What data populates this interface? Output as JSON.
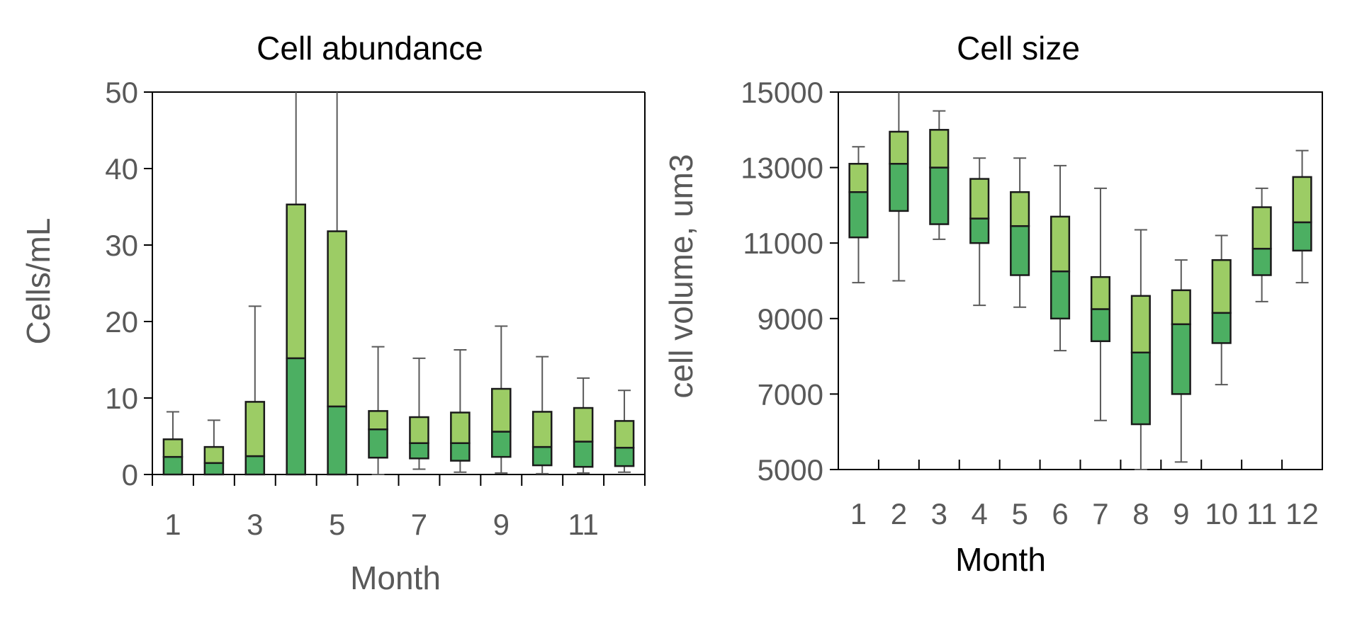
{
  "colors": {
    "upper_box": "#9ccc65",
    "lower_box": "#4caf62",
    "box_stroke": "#1a1a1a",
    "whisker": "#595959",
    "axis": "#000000",
    "tick_text": "#595959"
  },
  "chart_data": [
    {
      "type": "box",
      "title": "Cell abundance",
      "xlabel": "Month",
      "ylabel": "Cells/mL",
      "ylim": [
        0,
        50
      ],
      "y_ticks": [
        "0",
        "10",
        "20",
        "30",
        "40",
        "50"
      ],
      "x_tick_labels": [
        "1",
        "3",
        "5",
        "7",
        "9",
        "11"
      ],
      "categories": [
        1,
        2,
        3,
        4,
        5,
        6,
        7,
        8,
        9,
        10,
        11,
        12
      ],
      "grid": false,
      "boxes": [
        {
          "month": 1,
          "min": 0,
          "q1": 0,
          "median": 2.3,
          "q3": 4.6,
          "max": 8.2
        },
        {
          "month": 2,
          "min": 0,
          "q1": 0,
          "median": 1.5,
          "q3": 3.6,
          "max": 7.1
        },
        {
          "month": 3,
          "min": 0,
          "q1": 0,
          "median": 2.4,
          "q3": 9.5,
          "max": 22
        },
        {
          "month": 4,
          "min": 0,
          "q1": 0,
          "median": 15.2,
          "q3": 35.3,
          "max": 50
        },
        {
          "month": 5,
          "min": 0,
          "q1": 0,
          "median": 8.9,
          "q3": 31.8,
          "max": 50
        },
        {
          "month": 6,
          "min": 0,
          "q1": 2.2,
          "median": 5.9,
          "q3": 8.3,
          "max": 16.7
        },
        {
          "month": 7,
          "min": 0.7,
          "q1": 2.1,
          "median": 4.1,
          "q3": 7.5,
          "max": 15.2
        },
        {
          "month": 8,
          "min": 0.3,
          "q1": 1.8,
          "median": 4.1,
          "q3": 8.1,
          "max": 16.3
        },
        {
          "month": 9,
          "min": 0.2,
          "q1": 2.3,
          "median": 5.6,
          "q3": 11.2,
          "max": 19.4
        },
        {
          "month": 10,
          "min": 0.1,
          "q1": 1.2,
          "median": 3.6,
          "q3": 8.2,
          "max": 15.4
        },
        {
          "month": 11,
          "min": 0.2,
          "q1": 1.0,
          "median": 4.3,
          "q3": 8.7,
          "max": 12.6
        },
        {
          "month": 12,
          "min": 0.3,
          "q1": 1.1,
          "median": 3.5,
          "q3": 7.0,
          "max": 11.0
        }
      ]
    },
    {
      "type": "box",
      "title": "Cell size",
      "xlabel": "Month",
      "ylabel": "cell volume, um3",
      "ylim": [
        5000,
        15000
      ],
      "y_ticks": [
        "5000",
        "7000",
        "9000",
        "11000",
        "13000",
        "15000"
      ],
      "x_tick_labels": [
        "1",
        "2",
        "3",
        "4",
        "5",
        "6",
        "7",
        "8",
        "9",
        "10",
        "11",
        "12"
      ],
      "categories": [
        1,
        2,
        3,
        4,
        5,
        6,
        7,
        8,
        9,
        10,
        11,
        12
      ],
      "grid": false,
      "boxes": [
        {
          "month": 1,
          "min": 9950,
          "q1": 11150,
          "median": 12350,
          "q3": 13100,
          "max": 13550
        },
        {
          "month": 2,
          "min": 10000,
          "q1": 11850,
          "median": 13100,
          "q3": 13950,
          "max": 15000
        },
        {
          "month": 3,
          "min": 11100,
          "q1": 11500,
          "median": 13000,
          "q3": 14000,
          "max": 14500
        },
        {
          "month": 4,
          "min": 9350,
          "q1": 11000,
          "median": 11650,
          "q3": 12700,
          "max": 13250
        },
        {
          "month": 5,
          "min": 9300,
          "q1": 10150,
          "median": 11450,
          "q3": 12350,
          "max": 13250
        },
        {
          "month": 6,
          "min": 8150,
          "q1": 9000,
          "median": 10250,
          "q3": 11700,
          "max": 13050
        },
        {
          "month": 7,
          "min": 6300,
          "q1": 8400,
          "median": 9250,
          "q3": 10100,
          "max": 12450
        },
        {
          "month": 8,
          "min": 5000,
          "q1": 6200,
          "median": 8100,
          "q3": 9600,
          "max": 11350
        },
        {
          "month": 9,
          "min": 5200,
          "q1": 7000,
          "median": 8850,
          "q3": 9750,
          "max": 10550
        },
        {
          "month": 10,
          "min": 7250,
          "q1": 8350,
          "median": 9150,
          "q3": 10550,
          "max": 11200
        },
        {
          "month": 11,
          "min": 9450,
          "q1": 10150,
          "median": 10850,
          "q3": 11950,
          "max": 12450
        },
        {
          "month": 12,
          "min": 9950,
          "q1": 10800,
          "median": 11550,
          "q3": 12750,
          "max": 13450
        }
      ]
    }
  ]
}
